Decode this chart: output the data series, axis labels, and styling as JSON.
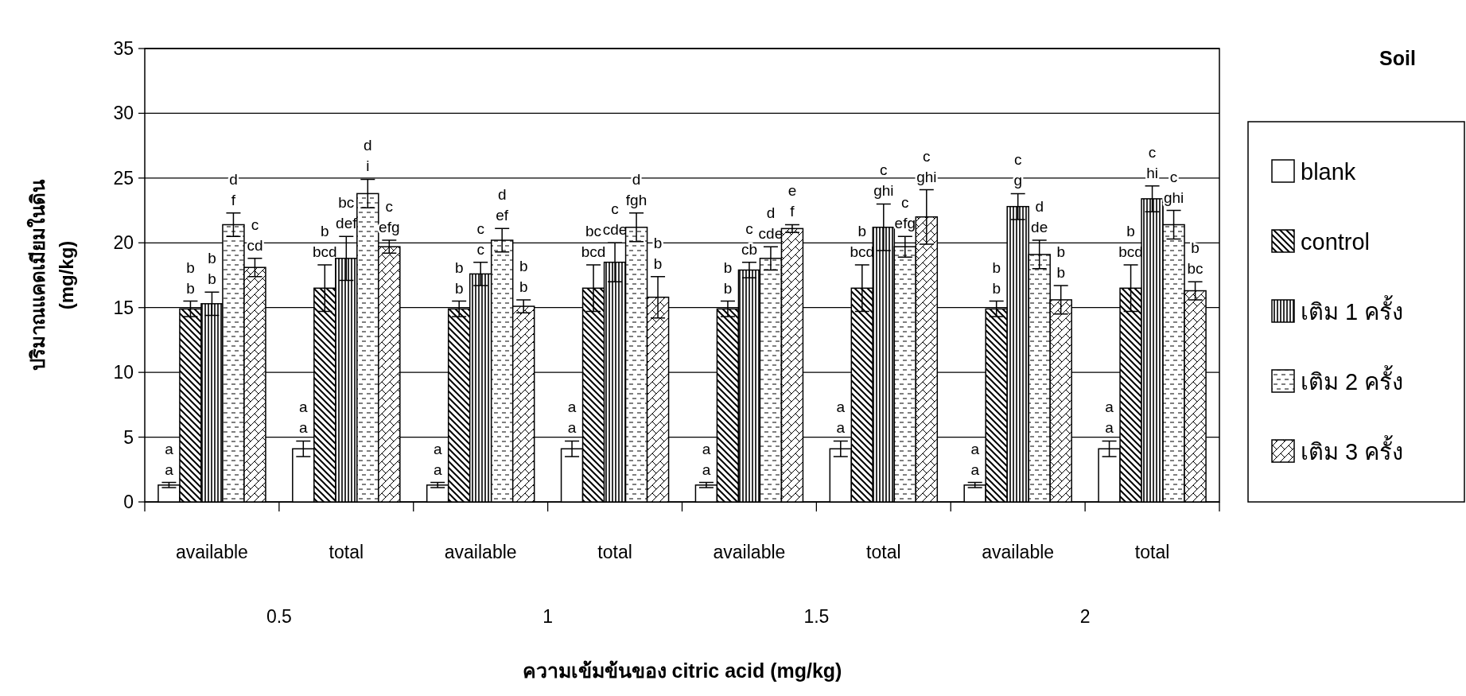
{
  "chart_data": {
    "type": "bar",
    "legend_title": "Soil",
    "ylabel": "ปริมาณแคดเมียมในดิน\n(mg/kg)",
    "xlabel": "ความเข้มข้นของ citric acid (mg/kg)",
    "categories": [
      "available",
      "total",
      "available",
      "total",
      "available",
      "total",
      "available",
      "total"
    ],
    "annotations": [
      "0.5",
      "1",
      "1.5",
      "2"
    ],
    "ylim": [
      0,
      35
    ],
    "yticks": [
      0,
      5,
      10,
      15,
      20,
      25,
      30,
      35
    ],
    "grid": "y",
    "legend": "right",
    "series": [
      {
        "name": "blank",
        "color": "#ffffff",
        "values": [
          1.3,
          4.1,
          1.3,
          4.1,
          1.3,
          4.1,
          1.3,
          4.1
        ],
        "errors": [
          0.2,
          0.6,
          0.2,
          0.6,
          0.2,
          0.6,
          0.2,
          0.6
        ],
        "value_labels": [
          "a\na",
          "a\na",
          "a\na",
          "a\na",
          "a\na",
          "a\na",
          "a\na",
          "a\na"
        ]
      },
      {
        "name": "control",
        "color": "#000000",
        "values": [
          14.9,
          16.5,
          14.9,
          16.5,
          14.9,
          16.5,
          14.9,
          16.5
        ],
        "errors": [
          0.6,
          1.8,
          0.6,
          1.8,
          0.6,
          1.8,
          0.6,
          1.8
        ],
        "value_labels": [
          "b\nb",
          "b\nbcd",
          "b\nb",
          "bc\nbcd",
          "b\nb",
          "b\nbcd",
          "b\nb",
          "b\nbcd"
        ]
      },
      {
        "name": "เติม 1 ครั้ง",
        "color": "#000000",
        "values": [
          15.3,
          18.8,
          17.6,
          18.5,
          17.9,
          21.2,
          22.8,
          23.4
        ],
        "errors": [
          0.9,
          1.7,
          0.9,
          1.5,
          0.6,
          1.8,
          1.0,
          1.0
        ],
        "value_labels": [
          "b\nb",
          "bc\ndef",
          "c\nc",
          "c\ncde",
          "c\ncb",
          "c\nghi",
          "c\ng",
          "c\nhi"
        ]
      },
      {
        "name": "เติม 2 ครั้ง",
        "color": "#000000",
        "values": [
          21.4,
          23.8,
          20.2,
          21.2,
          18.8,
          19.7,
          19.1,
          21.4
        ],
        "errors": [
          0.9,
          1.1,
          0.9,
          1.1,
          0.9,
          0.8,
          1.1,
          1.1
        ],
        "value_labels": [
          "d\nf",
          "d\ni",
          "d\nef",
          "d\nfgh",
          "d\ncde",
          "c\nefg",
          "d\nde",
          "c\nghi"
        ]
      },
      {
        "name": "เติม 3 ครั้ง",
        "color": "#000000",
        "values": [
          18.1,
          19.7,
          15.1,
          15.8,
          21.1,
          22.0,
          15.6,
          16.3
        ],
        "errors": [
          0.7,
          0.5,
          0.5,
          1.6,
          0.3,
          2.1,
          1.1,
          0.7
        ],
        "value_labels": [
          "c\ncd",
          "c\nefg",
          "b\nb",
          "b\nb",
          "e\nf",
          "c\nghi",
          "b\nb",
          "b\nbc"
        ]
      }
    ]
  }
}
